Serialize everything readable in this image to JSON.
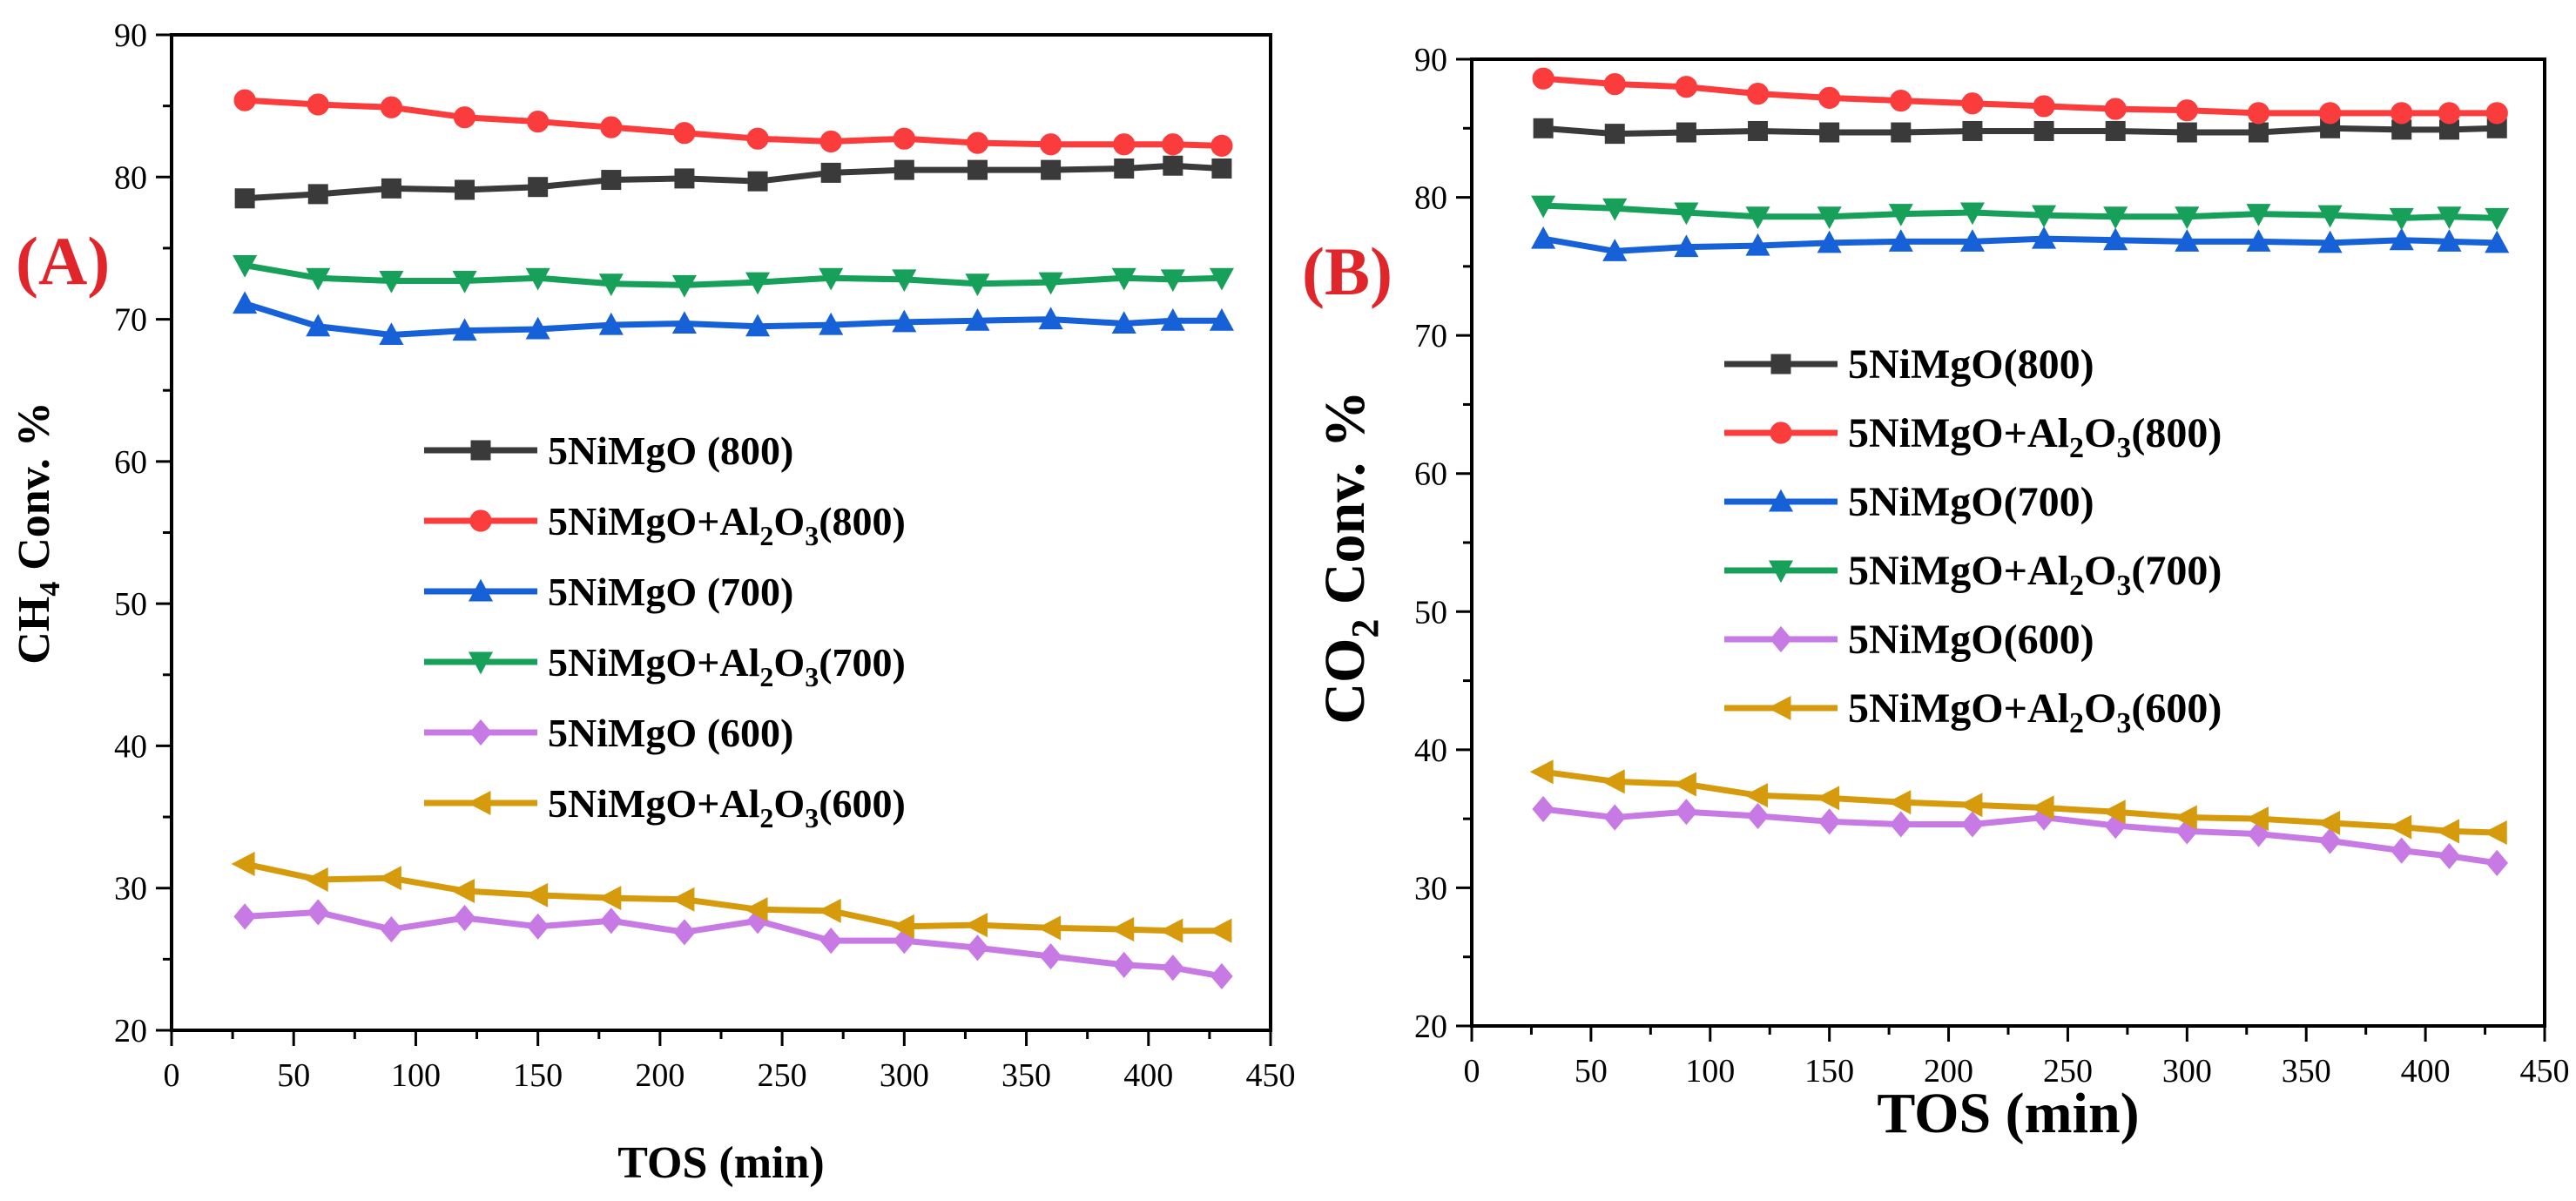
{
  "chart_data": [
    {
      "panel_label": "(A)",
      "type": "line",
      "xlabel": "TOS (min)",
      "ylabel": {
        "base": "CH",
        "sub": "4",
        "rest": " Conv. %"
      },
      "xlim": [
        0,
        450
      ],
      "ylim": [
        20,
        90
      ],
      "xticks": [
        0,
        50,
        100,
        150,
        200,
        250,
        300,
        350,
        400,
        450
      ],
      "yticks": [
        20,
        30,
        40,
        50,
        60,
        70,
        80,
        90
      ],
      "legend_position": "center",
      "x": [
        30,
        60,
        90,
        120,
        150,
        180,
        210,
        240,
        270,
        300,
        330,
        360,
        390,
        410,
        430
      ],
      "series": [
        {
          "name": "5NiMgO (800)",
          "label": {
            "a": "5NiMgO (800)"
          },
          "color": "#3a3a3a",
          "marker": "square",
          "values": [
            78.5,
            78.8,
            79.2,
            79.1,
            79.3,
            79.8,
            79.9,
            79.7,
            80.3,
            80.5,
            80.5,
            80.5,
            80.6,
            80.8,
            80.6
          ]
        },
        {
          "name": "5NiMgO+Al2O3(800)",
          "label": {
            "a": "5NiMgO+Al",
            "s1": "2",
            "b": "O",
            "s2": "3",
            "c": "(800)"
          },
          "color": "#fa3c3c",
          "marker": "circle",
          "values": [
            85.4,
            85.1,
            84.9,
            84.2,
            83.9,
            83.5,
            83.1,
            82.7,
            82.5,
            82.7,
            82.4,
            82.3,
            82.3,
            82.3,
            82.2
          ]
        },
        {
          "name": "5NiMgO (700)",
          "label": {
            "a": "5NiMgO (700)"
          },
          "color": "#1660d8",
          "marker": "triangle-up",
          "values": [
            71.1,
            69.5,
            68.9,
            69.2,
            69.3,
            69.6,
            69.7,
            69.5,
            69.6,
            69.8,
            69.9,
            70.0,
            69.7,
            69.9,
            69.9
          ]
        },
        {
          "name": "5NiMgO+Al2O3(700)",
          "label": {
            "a": "5NiMgO+Al",
            "s1": "2",
            "b": "O",
            "s2": "3",
            "c": "(700)"
          },
          "color": "#16a05a",
          "marker": "triangle-down",
          "values": [
            73.8,
            72.9,
            72.7,
            72.7,
            72.9,
            72.5,
            72.4,
            72.6,
            72.9,
            72.8,
            72.5,
            72.6,
            72.9,
            72.8,
            72.9
          ]
        },
        {
          "name": "5NiMgO (600)",
          "label": {
            "a": "5NiMgO (600)"
          },
          "color": "#c77ae3",
          "marker": "diamond",
          "values": [
            28.0,
            28.3,
            27.1,
            27.9,
            27.3,
            27.7,
            26.9,
            27.7,
            26.3,
            26.3,
            25.8,
            25.2,
            24.6,
            24.4,
            23.8
          ]
        },
        {
          "name": "5NiMgO+Al2O3(600)",
          "label": {
            "a": "5NiMgO+Al",
            "s1": "2",
            "b": "O",
            "s2": "3",
            "c": "(600)"
          },
          "color": "#d69b0c",
          "marker": "triangle-left",
          "values": [
            31.7,
            30.6,
            30.7,
            29.8,
            29.5,
            29.3,
            29.2,
            28.5,
            28.4,
            27.3,
            27.4,
            27.2,
            27.1,
            27.0,
            27.0
          ]
        }
      ]
    },
    {
      "panel_label": "(B)",
      "type": "line",
      "xlabel": "TOS (min)",
      "ylabel": {
        "base": "CO",
        "sub": "2",
        "rest": " Conv. %"
      },
      "xlim": [
        0,
        450
      ],
      "ylim": [
        20,
        90
      ],
      "xticks": [
        0,
        50,
        100,
        150,
        200,
        250,
        300,
        350,
        400,
        450
      ],
      "yticks": [
        20,
        30,
        40,
        50,
        60,
        70,
        80,
        90
      ],
      "legend_position": "center",
      "x": [
        30,
        60,
        90,
        120,
        150,
        180,
        210,
        240,
        270,
        300,
        330,
        360,
        390,
        410,
        430
      ],
      "series": [
        {
          "name": "5NiMgO(800)",
          "label": {
            "a": "5NiMgO(800)"
          },
          "color": "#3a3a3a",
          "marker": "square",
          "values": [
            85.0,
            84.6,
            84.7,
            84.8,
            84.7,
            84.7,
            84.8,
            84.8,
            84.8,
            84.7,
            84.7,
            85.0,
            84.9,
            84.9,
            85.0
          ]
        },
        {
          "name": "5NiMgO+Al2O3(800)",
          "label": {
            "a": "5NiMgO+Al",
            "s1": "2",
            "b": "O",
            "s2": "3",
            "c": "(800)"
          },
          "color": "#fa3c3c",
          "marker": "circle",
          "values": [
            88.6,
            88.2,
            88.0,
            87.5,
            87.2,
            87.0,
            86.8,
            86.6,
            86.4,
            86.3,
            86.1,
            86.1,
            86.1,
            86.1,
            86.1
          ]
        },
        {
          "name": "5NiMgO(700)",
          "label": {
            "a": "5NiMgO(700)"
          },
          "color": "#1660d8",
          "marker": "triangle-up",
          "values": [
            77.0,
            76.1,
            76.4,
            76.5,
            76.7,
            76.8,
            76.8,
            77.0,
            76.9,
            76.8,
            76.8,
            76.7,
            76.9,
            76.8,
            76.7
          ]
        },
        {
          "name": "5NiMgO+Al2O3(700)",
          "label": {
            "a": "5NiMgO+Al",
            "s1": "2",
            "b": "O",
            "s2": "3",
            "c": "(700)"
          },
          "color": "#16a05a",
          "marker": "triangle-down",
          "values": [
            79.4,
            79.2,
            78.9,
            78.6,
            78.6,
            78.8,
            78.9,
            78.7,
            78.6,
            78.6,
            78.8,
            78.7,
            78.5,
            78.6,
            78.5
          ]
        },
        {
          "name": "5NiMgO(600)",
          "label": {
            "a": "5NiMgO(600)"
          },
          "color": "#c77ae3",
          "marker": "diamond",
          "values": [
            35.7,
            35.1,
            35.5,
            35.2,
            34.8,
            34.6,
            34.6,
            35.1,
            34.5,
            34.1,
            33.9,
            33.4,
            32.7,
            32.3,
            31.8
          ]
        },
        {
          "name": "5NiMgO+Al2O3(600)",
          "label": {
            "a": "5NiMgO+Al",
            "s1": "2",
            "b": "O",
            "s2": "3",
            "c": "(600)"
          },
          "color": "#d69b0c",
          "marker": "triangle-left",
          "values": [
            38.4,
            37.7,
            37.5,
            36.7,
            36.5,
            36.2,
            36.0,
            35.8,
            35.5,
            35.1,
            35.0,
            34.7,
            34.4,
            34.1,
            34.0
          ]
        }
      ]
    }
  ]
}
